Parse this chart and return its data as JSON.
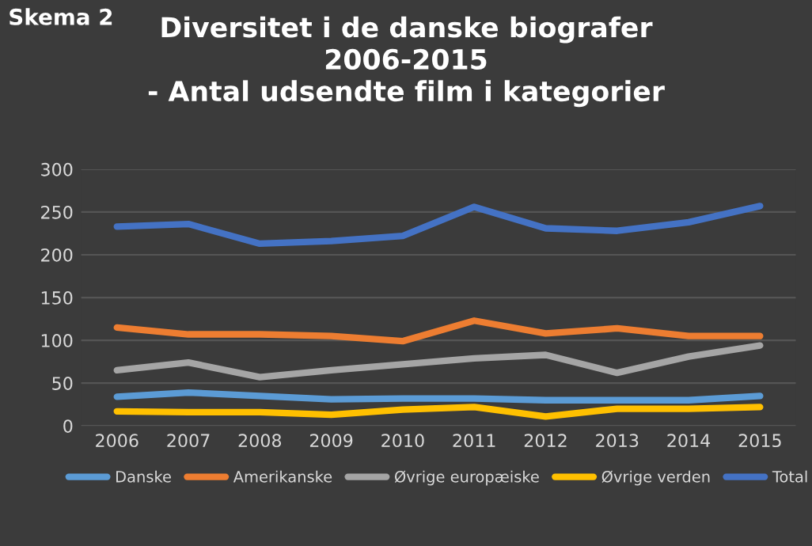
{
  "chart_data": {
    "type": "line",
    "title": "Diversitet i de danske biografer\n2006-2015\n- Antal udsendte film i kategorier",
    "annotations": [
      "Skema 2"
    ],
    "categories": [
      "2006",
      "2007",
      "2008",
      "2009",
      "2010",
      "2011",
      "2012",
      "2013",
      "2014",
      "2015"
    ],
    "series": [
      {
        "name": "Danske",
        "color": "#5b9bd5",
        "values": [
          34,
          39,
          35,
          31,
          32,
          32,
          30,
          30,
          30,
          35
        ]
      },
      {
        "name": "Amerikanske",
        "color": "#ed7d31",
        "values": [
          115,
          107,
          107,
          105,
          99,
          123,
          108,
          114,
          105,
          105
        ]
      },
      {
        "name": "Øvrige europæiske",
        "color": "#a5a5a5",
        "values": [
          65,
          74,
          57,
          65,
          72,
          79,
          83,
          62,
          81,
          94
        ]
      },
      {
        "name": "Øvrige verden",
        "color": "#ffc000",
        "values": [
          17,
          16,
          16,
          13,
          19,
          22,
          11,
          20,
          20,
          22
        ]
      },
      {
        "name": "Total",
        "color": "#4472c4",
        "values": [
          233,
          236,
          213,
          216,
          222,
          256,
          231,
          228,
          238,
          257
        ]
      }
    ],
    "ylim": [
      0,
      300
    ],
    "yticks": [
      0,
      50,
      100,
      150,
      200,
      250,
      300
    ],
    "grid": "y",
    "legend": "bottom",
    "marker": "none",
    "line_style": "solid"
  }
}
